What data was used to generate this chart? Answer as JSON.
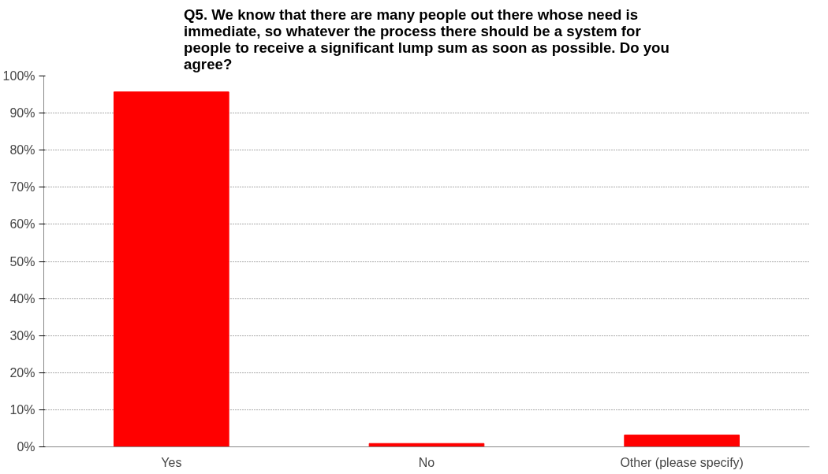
{
  "chart_data": {
    "type": "bar",
    "title": "Q5. We know that there are many people out there whose need is immediate, so whatever the process there should be a system for people to receive a significant lump sum as soon as possible. Do you agree?",
    "categories": [
      "Yes",
      "No",
      "Other (please specify)"
    ],
    "values": [
      95.7,
      0.9,
      3.2
    ],
    "color": "#ff0000",
    "ylim": [
      0,
      100
    ],
    "yticks": [
      {
        "value": 0,
        "label": "0%"
      },
      {
        "value": 10,
        "label": "10%"
      },
      {
        "value": 20,
        "label": "20%"
      },
      {
        "value": 30,
        "label": "30%"
      },
      {
        "value": 40,
        "label": "40%"
      },
      {
        "value": 50,
        "label": "50%"
      },
      {
        "value": 60,
        "label": "60%"
      },
      {
        "value": 70,
        "label": "70%"
      },
      {
        "value": 80,
        "label": "80%"
      },
      {
        "value": 90,
        "label": "90%"
      },
      {
        "value": 100,
        "label": "100%"
      }
    ],
    "grid": "y"
  }
}
